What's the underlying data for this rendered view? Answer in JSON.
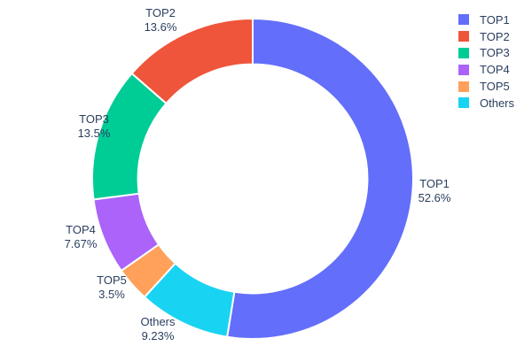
{
  "chart_data": {
    "type": "pie",
    "subtype": "donut",
    "hole": 0.715,
    "title": "",
    "labels": [
      "TOP1",
      "TOP2",
      "TOP3",
      "TOP4",
      "TOP5",
      "Others"
    ],
    "values": [
      52.6,
      13.6,
      13.5,
      7.67,
      3.5,
      9.23
    ],
    "percent_labels": [
      "52.6%",
      "13.6%",
      "13.5%",
      "7.67%",
      "3.5%",
      "9.23%"
    ],
    "colors": [
      "#636EFA",
      "#EF553B",
      "#00CC96",
      "#AB63FA",
      "#FFA15A",
      "#19D3F3"
    ],
    "text_color": "#2a3f5f",
    "separator_color": "#ffffff",
    "background_color": "#ffffff",
    "label_position": "outside",
    "first_slice_start": "top-clockwise",
    "remaining_slices_direction": "counterclockwise",
    "legend_position": "right"
  },
  "legend": {
    "items": [
      "TOP1",
      "TOP2",
      "TOP3",
      "TOP4",
      "TOP5",
      "Others"
    ]
  }
}
